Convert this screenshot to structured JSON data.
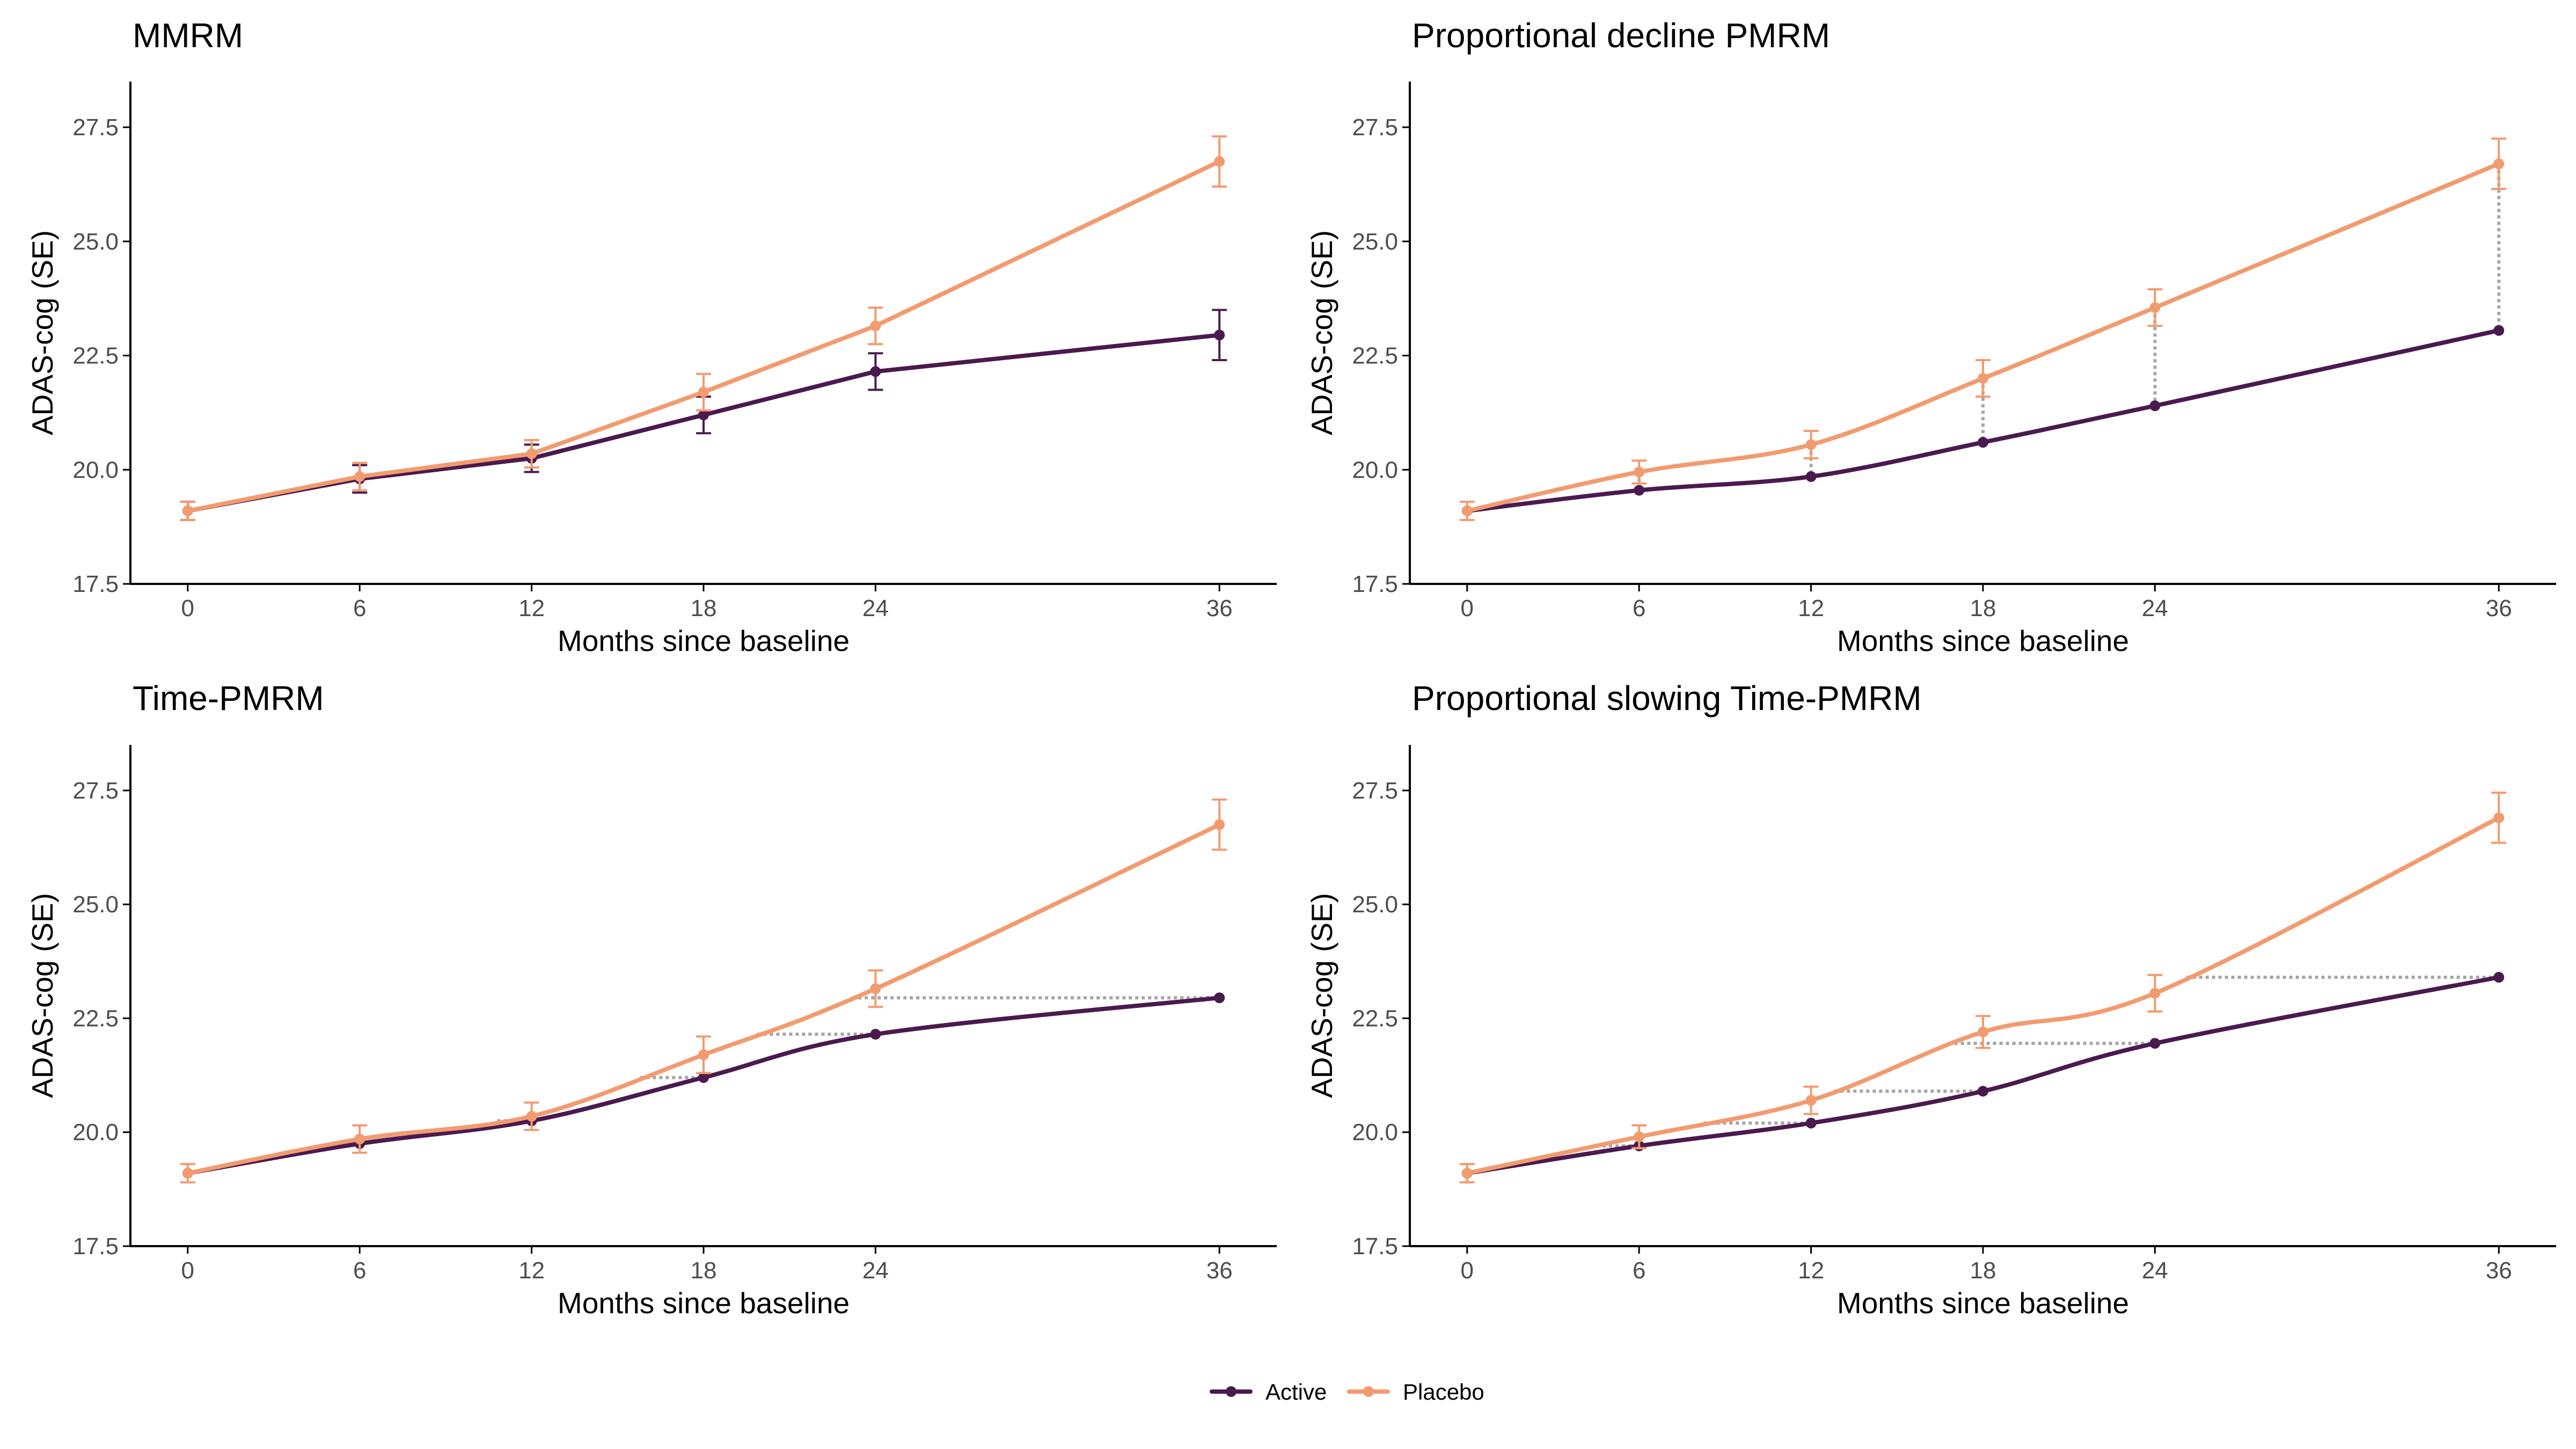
{
  "colors": {
    "active": "#4a1a4f",
    "placebo": "#f29b6f",
    "connector": "#a6a6a6",
    "axis": "#000000",
    "tick_text": "#4d4d4d"
  },
  "legend": {
    "items": [
      {
        "label": "Active",
        "series": "active"
      },
      {
        "label": "Placebo",
        "series": "placebo"
      }
    ]
  },
  "chart_data": [
    {
      "type": "line",
      "title": "MMRM",
      "xlabel": "Months since baseline",
      "ylabel": "ADAS-cog (SE)",
      "x": [
        0,
        6,
        12,
        18,
        24,
        36
      ],
      "xticks": [
        "0",
        "6",
        "12",
        "18",
        "24",
        "36"
      ],
      "xlim": [
        -2,
        38
      ],
      "ylim": [
        17.5,
        28.5
      ],
      "yticks": [
        "17.5",
        "20.0",
        "22.5",
        "25.0",
        "27.5"
      ],
      "curve": "linear",
      "connectors": "none",
      "series": [
        {
          "name": "Active",
          "key": "active",
          "values": [
            19.1,
            19.8,
            20.25,
            21.2,
            22.15,
            22.95
          ],
          "se": [
            0.2,
            0.3,
            0.3,
            0.4,
            0.4,
            0.55
          ]
        },
        {
          "name": "Placebo",
          "key": "placebo",
          "values": [
            19.1,
            19.85,
            20.35,
            21.7,
            23.15,
            26.75
          ],
          "se": [
            0.2,
            0.3,
            0.3,
            0.4,
            0.4,
            0.55
          ]
        }
      ]
    },
    {
      "type": "line",
      "title": "Proportional decline PMRM",
      "xlabel": "Months since baseline",
      "ylabel": "ADAS-cog (SE)",
      "x": [
        0,
        6,
        12,
        18,
        24,
        36
      ],
      "xticks": [
        "0",
        "6",
        "12",
        "18",
        "24",
        "36"
      ],
      "xlim": [
        -2,
        38
      ],
      "ylim": [
        17.5,
        28.5
      ],
      "yticks": [
        "17.5",
        "20.0",
        "22.5",
        "25.0",
        "27.5"
      ],
      "curve": "smooth",
      "connectors": "vertical",
      "series": [
        {
          "name": "Active",
          "key": "active",
          "values": [
            19.1,
            19.55,
            19.85,
            20.6,
            21.4,
            23.05
          ],
          "se": null
        },
        {
          "name": "Placebo",
          "key": "placebo",
          "values": [
            19.1,
            19.95,
            20.55,
            22.0,
            23.55,
            26.7
          ],
          "se": [
            0.2,
            0.25,
            0.3,
            0.4,
            0.4,
            0.55
          ]
        }
      ]
    },
    {
      "type": "line",
      "title": "Time-PMRM",
      "xlabel": "Months since baseline",
      "ylabel": "ADAS-cog (SE)",
      "x": [
        0,
        6,
        12,
        18,
        24,
        36
      ],
      "xticks": [
        "0",
        "6",
        "12",
        "18",
        "24",
        "36"
      ],
      "xlim": [
        -2,
        38
      ],
      "ylim": [
        17.5,
        28.5
      ],
      "yticks": [
        "17.5",
        "20.0",
        "22.5",
        "25.0",
        "27.5"
      ],
      "curve": "smooth",
      "connectors": "horizontal",
      "series": [
        {
          "name": "Active",
          "key": "active",
          "values": [
            19.1,
            19.75,
            20.25,
            21.2,
            22.15,
            22.95
          ],
          "se": null
        },
        {
          "name": "Placebo",
          "key": "placebo",
          "values": [
            19.1,
            19.85,
            20.35,
            21.7,
            23.15,
            26.75
          ],
          "se": [
            0.2,
            0.3,
            0.3,
            0.4,
            0.4,
            0.55
          ]
        }
      ]
    },
    {
      "type": "line",
      "title": "Proportional slowing Time-PMRM",
      "xlabel": "Months since baseline",
      "ylabel": "ADAS-cog (SE)",
      "x": [
        0,
        6,
        12,
        18,
        24,
        36
      ],
      "xticks": [
        "0",
        "6",
        "12",
        "18",
        "24",
        "36"
      ],
      "xlim": [
        -2,
        38
      ],
      "ylim": [
        17.5,
        28.5
      ],
      "yticks": [
        "17.5",
        "20.0",
        "22.5",
        "25.0",
        "27.5"
      ],
      "curve": "smooth",
      "connectors": "horizontal",
      "series": [
        {
          "name": "Active",
          "key": "active",
          "values": [
            19.1,
            19.7,
            20.2,
            20.9,
            21.95,
            23.4
          ],
          "se": null
        },
        {
          "name": "Placebo",
          "key": "placebo",
          "values": [
            19.1,
            19.9,
            20.7,
            22.2,
            23.05,
            26.9
          ],
          "se": [
            0.2,
            0.25,
            0.3,
            0.35,
            0.4,
            0.55
          ]
        }
      ]
    }
  ]
}
